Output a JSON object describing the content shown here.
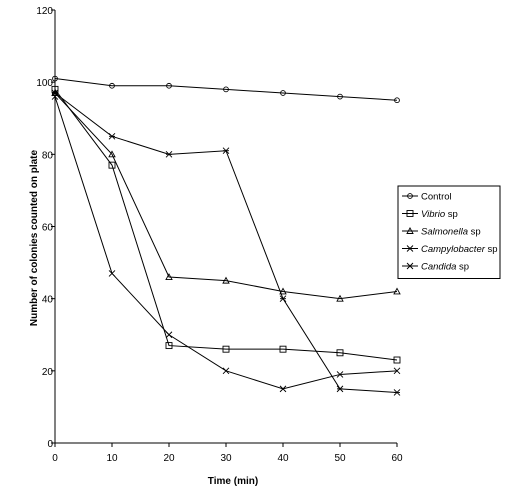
{
  "chart_data": {
    "type": "line",
    "xlabel": "Time (min)",
    "ylabel": "Number of colonies counted on plate",
    "xlim": [
      0,
      60
    ],
    "ylim": [
      0,
      120
    ],
    "x_ticks": [
      "0",
      "10",
      "20",
      "30",
      "40",
      "50",
      "60"
    ],
    "y_ticks": [
      "0",
      "20",
      "40",
      "60",
      "80",
      "100",
      "120"
    ],
    "grid": false,
    "legend_position": "right",
    "x": [
      0,
      10,
      20,
      30,
      40,
      50,
      60
    ],
    "series": [
      {
        "name": "Control",
        "name_main": "Control",
        "name_suffix": "",
        "italic": false,
        "marker": "circle",
        "values": [
          101,
          99,
          99,
          98,
          97,
          96,
          95
        ]
      },
      {
        "name": "Vibrio sp",
        "name_main": "Vibrio",
        "name_suffix": " sp",
        "italic": true,
        "marker": "square",
        "values": [
          98,
          77,
          27,
          26,
          26,
          25,
          23
        ]
      },
      {
        "name": "Salmonella sp",
        "name_main": "Salmonella",
        "name_suffix": " sp",
        "italic": true,
        "marker": "triangle",
        "values": [
          97,
          80,
          46,
          45,
          42,
          40,
          42
        ]
      },
      {
        "name": "Campylobacter sp",
        "name_main": "Campylobacter",
        "name_suffix": " sp",
        "italic": true,
        "marker": "x",
        "values": [
          96,
          47,
          30,
          20,
          15,
          19,
          20
        ]
      },
      {
        "name": "Candida sp",
        "name_main": "Candida",
        "name_suffix": " sp",
        "italic": true,
        "marker": "star",
        "values": [
          97,
          85,
          80,
          81,
          40,
          15,
          14
        ]
      }
    ]
  }
}
